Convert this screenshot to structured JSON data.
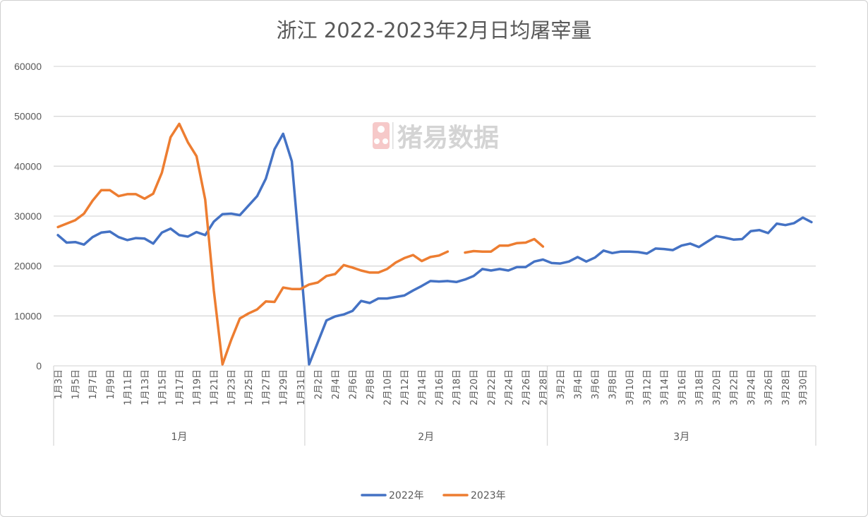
{
  "chart_data": {
    "type": "line",
    "title": "浙江 2022-2023年2月日均屠宰量",
    "watermark": "猪易数据",
    "xlabel": "",
    "ylabel": "",
    "ylim": [
      0,
      60000
    ],
    "yticks": [
      0,
      10000,
      20000,
      30000,
      40000,
      50000,
      60000
    ],
    "grid": true,
    "legend_position": "bottom",
    "groups": [
      {
        "label": "1月",
        "count": 29
      },
      {
        "label": "2月",
        "count": 28
      },
      {
        "label": "3月",
        "count": 31
      }
    ],
    "categories": [
      "1月3日",
      "1月4日",
      "1月5日",
      "1月6日",
      "1月7日",
      "1月8日",
      "1月9日",
      "1月10日",
      "1月11日",
      "1月12日",
      "1月13日",
      "1月14日",
      "1月15日",
      "1月16日",
      "1月17日",
      "1月18日",
      "1月19日",
      "1月20日",
      "1月21日",
      "1月22日",
      "1月23日",
      "1月24日",
      "1月25日",
      "1月26日",
      "1月27日",
      "1月28日",
      "1月29日",
      "1月30日",
      "1月31日",
      "2月1日",
      "2月2日",
      "2月3日",
      "2月4日",
      "2月5日",
      "2月6日",
      "2月7日",
      "2月8日",
      "2月9日",
      "2月10日",
      "2月11日",
      "2月12日",
      "2月13日",
      "2月14日",
      "2月15日",
      "2月16日",
      "2月17日",
      "2月18日",
      "2月19日",
      "2月20日",
      "2月21日",
      "2月22日",
      "2月23日",
      "2月24日",
      "2月25日",
      "2月26日",
      "2月27日",
      "2月28日",
      "3月1日",
      "3月2日",
      "3月3日",
      "3月4日",
      "3月5日",
      "3月6日",
      "3月7日",
      "3月8日",
      "3月9日",
      "3月10日",
      "3月11日",
      "3月12日",
      "3月13日",
      "3月14日",
      "3月15日",
      "3月16日",
      "3月17日",
      "3月18日",
      "3月19日",
      "3月20日",
      "3月21日",
      "3月22日",
      "3月23日",
      "3月24日",
      "3月25日",
      "3月26日",
      "3月27日",
      "3月28日",
      "3月29日",
      "3月30日",
      "3月31日"
    ],
    "series": [
      {
        "name": "2022年",
        "color": "#4472C4",
        "values": [
          26200,
          24700,
          24800,
          24300,
          25800,
          26700,
          26900,
          25800,
          25200,
          25600,
          25500,
          24500,
          26700,
          27500,
          26200,
          25900,
          26800,
          26200,
          28900,
          30400,
          30500,
          30200,
          32100,
          34000,
          37500,
          43400,
          46500,
          41000,
          21000,
          300,
          4700,
          9100,
          9900,
          10300,
          11000,
          13000,
          12600,
          13500,
          13500,
          13800,
          14100,
          15100,
          16000,
          17000,
          16900,
          17000,
          16800,
          17300,
          18000,
          19400,
          19100,
          19400,
          19100,
          19800,
          19800,
          20900,
          21300,
          20600,
          20500,
          20900,
          21800,
          20900,
          21700,
          23100,
          22600,
          22900,
          22900,
          22800,
          22500,
          23500,
          23400,
          23200,
          24100,
          24500,
          23800,
          24900,
          26000,
          25700,
          25300,
          25400,
          27000,
          27200,
          26600,
          28500,
          28200,
          28600,
          29700,
          28800
        ]
      },
      {
        "name": "2023年",
        "color": "#ED7D31",
        "values": [
          27800,
          28500,
          29200,
          30500,
          33100,
          35200,
          35200,
          34000,
          34400,
          34400,
          33500,
          34500,
          38700,
          45800,
          48500,
          44800,
          42000,
          33300,
          15100,
          300,
          5200,
          9500,
          10500,
          11300,
          12900,
          12800,
          15700,
          15400,
          15400,
          16300,
          16700,
          18000,
          18400,
          20200,
          19700,
          19100,
          18700,
          18700,
          19400,
          20700,
          21600,
          22200,
          21000,
          21800,
          22100,
          22900,
          null,
          22700,
          23000,
          22900,
          22900,
          24100,
          24100,
          24600,
          24700,
          25400,
          23900,
          null,
          null,
          null,
          null,
          null,
          null,
          null,
          null,
          null,
          null,
          null,
          null,
          null,
          null,
          null,
          null,
          null,
          null,
          null,
          null,
          null,
          null,
          null,
          null,
          null,
          null,
          null,
          null,
          null,
          null,
          null
        ]
      }
    ]
  }
}
